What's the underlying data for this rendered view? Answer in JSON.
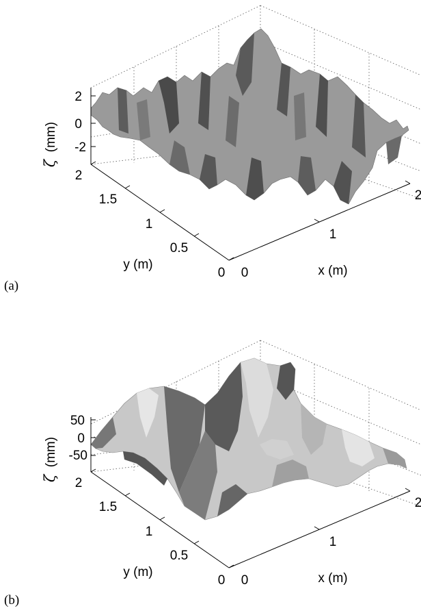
{
  "chart_data": [
    {
      "type": "surface",
      "panel_label": "(a)",
      "zlabel_symbol": "ζ",
      "zlabel_unit": "(mm)",
      "xlabel": "x (m)",
      "ylabel": "y (m)",
      "xlim": [
        0,
        2
      ],
      "ylim": [
        0,
        2
      ],
      "zlim": [
        -3,
        3
      ],
      "x_ticks": [
        "0",
        "1",
        "2"
      ],
      "y_ticks": [
        "0",
        "0.5",
        "1",
        "1.5",
        "2"
      ],
      "z_ticks": [
        "2",
        "0",
        "-2"
      ],
      "grid": true,
      "surface_color": "#9a9a9a",
      "shade_color": "#4a4a4a"
    },
    {
      "type": "surface",
      "panel_label": "(b)",
      "zlabel_symbol": "ζ",
      "zlabel_unit": "(mm)",
      "xlabel": "x (m)",
      "ylabel": "y (m)",
      "xlim": [
        0,
        2
      ],
      "ylim": [
        0,
        2
      ],
      "zlim": [
        -75,
        75
      ],
      "x_ticks": [
        "0",
        "1",
        "2"
      ],
      "y_ticks": [
        "0",
        "0.5",
        "1",
        "1.5",
        "2"
      ],
      "z_ticks": [
        "50",
        "0",
        "-50"
      ],
      "grid": true,
      "surface_color": "#c8c8c8",
      "shade_color": "#5a5a5a"
    }
  ]
}
